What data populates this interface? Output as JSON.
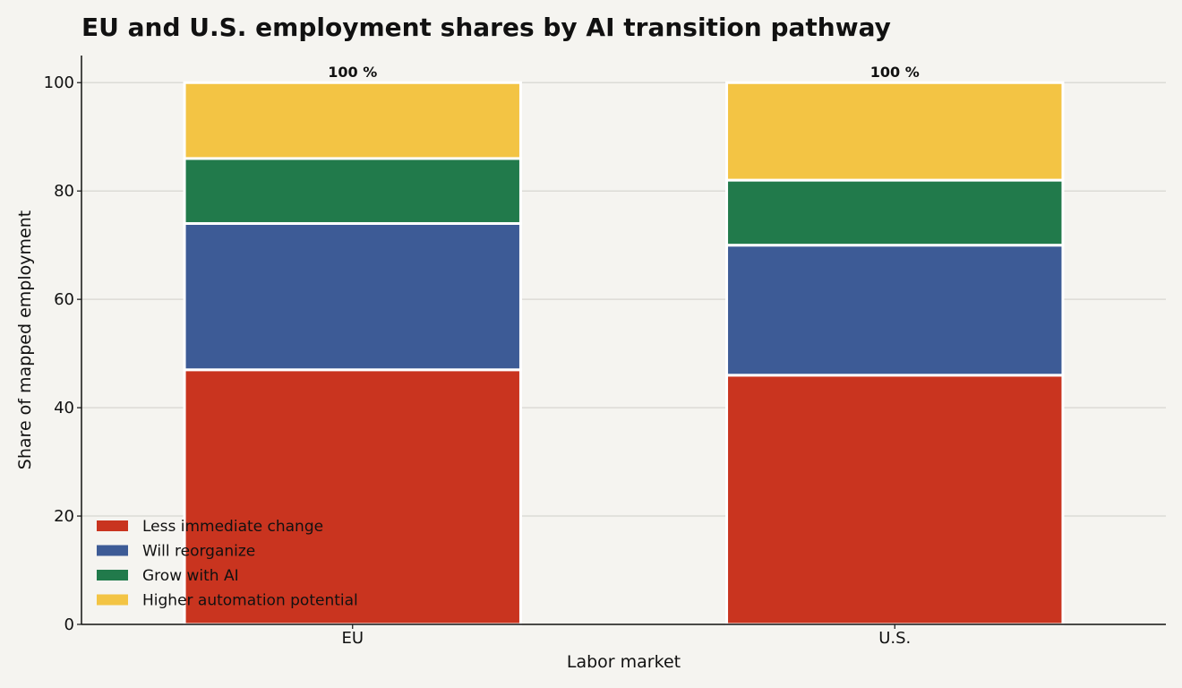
{
  "chart_data": {
    "type": "bar",
    "stacked": true,
    "title": "EU and U.S. employment shares by AI transition pathway",
    "xlabel": "Labor market",
    "ylabel": "Share of mapped employment",
    "ylim": [
      0,
      105
    ],
    "yticks": [
      0,
      20,
      40,
      60,
      80,
      100
    ],
    "grid": true,
    "legend_position": "bottom-left",
    "categories": [
      "EU",
      "U.S."
    ],
    "series": [
      {
        "name": "Less immediate change",
        "color": "#c9341f",
        "values": [
          47,
          46
        ]
      },
      {
        "name": "Will reorganize",
        "color": "#3d5b96",
        "values": [
          27,
          24
        ]
      },
      {
        "name": "Grow with AI",
        "color": "#217a4b",
        "values": [
          12,
          12
        ]
      },
      {
        "name": "Higher automation potential",
        "color": "#f3c444",
        "values": [
          14,
          18
        ]
      }
    ],
    "totals": [
      100,
      100
    ],
    "total_labels": [
      "100 %",
      "100 %"
    ]
  }
}
